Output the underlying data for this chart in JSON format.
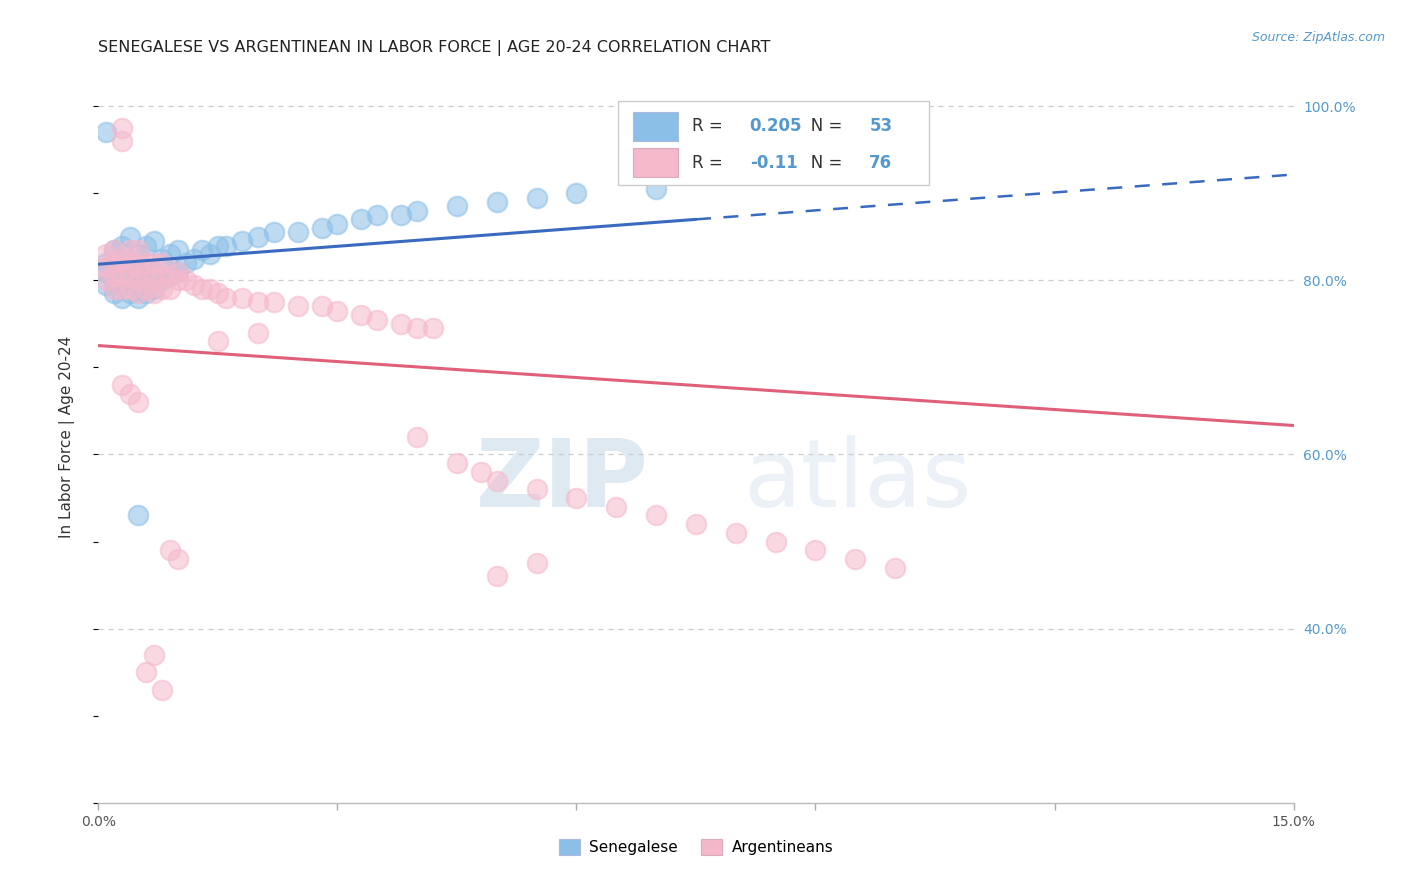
{
  "title": "SENEGALESE VS ARGENTINEAN IN LABOR FORCE | AGE 20-24 CORRELATION CHART",
  "source": "Source: ZipAtlas.com",
  "ylabel": "In Labor Force | Age 20-24",
  "xlim": [
    0.0,
    0.15
  ],
  "ylim": [
    0.2,
    1.04
  ],
  "blue_color": "#8bbfe8",
  "pink_color": "#f5b8cb",
  "blue_line_color": "#3a6abf",
  "pink_line_color": "#e0607a",
  "blue_R": 0.205,
  "blue_N": 53,
  "pink_R": -0.11,
  "pink_N": 76,
  "watermark_zip": "ZIP",
  "watermark_atlas": "atlas",
  "watermark_color": "#c5d8ec",
  "legend_label_blue": "Senegalese",
  "legend_label_pink": "Argentineans",
  "title_fontsize": 11.5,
  "axis_label_fontsize": 11,
  "tick_fontsize": 10,
  "source_fontsize": 9,
  "blue_x": [
    0.001,
    0.001,
    0.001,
    0.001,
    0.002,
    0.002,
    0.002,
    0.002,
    0.003,
    0.003,
    0.003,
    0.004,
    0.004,
    0.004,
    0.004,
    0.005,
    0.005,
    0.005,
    0.005,
    0.006,
    0.006,
    0.006,
    0.007,
    0.007,
    0.007,
    0.008,
    0.008,
    0.009,
    0.009,
    0.01,
    0.01,
    0.011,
    0.012,
    0.013,
    0.014,
    0.015,
    0.016,
    0.018,
    0.02,
    0.022,
    0.025,
    0.028,
    0.03,
    0.033,
    0.035,
    0.038,
    0.04,
    0.045,
    0.05,
    0.055,
    0.06,
    0.07,
    0.005
  ],
  "blue_y": [
    0.795,
    0.81,
    0.82,
    0.97,
    0.785,
    0.8,
    0.82,
    0.835,
    0.78,
    0.8,
    0.84,
    0.785,
    0.8,
    0.82,
    0.85,
    0.78,
    0.795,
    0.81,
    0.83,
    0.785,
    0.81,
    0.84,
    0.79,
    0.81,
    0.845,
    0.8,
    0.825,
    0.805,
    0.83,
    0.81,
    0.835,
    0.82,
    0.825,
    0.835,
    0.83,
    0.84,
    0.84,
    0.845,
    0.85,
    0.855,
    0.855,
    0.86,
    0.865,
    0.87,
    0.875,
    0.875,
    0.88,
    0.885,
    0.89,
    0.895,
    0.9,
    0.905,
    0.53
  ],
  "pink_x": [
    0.001,
    0.001,
    0.001,
    0.002,
    0.002,
    0.002,
    0.002,
    0.003,
    0.003,
    0.003,
    0.003,
    0.003,
    0.004,
    0.004,
    0.004,
    0.004,
    0.005,
    0.005,
    0.005,
    0.005,
    0.006,
    0.006,
    0.006,
    0.007,
    0.007,
    0.007,
    0.008,
    0.008,
    0.008,
    0.009,
    0.009,
    0.01,
    0.01,
    0.011,
    0.012,
    0.013,
    0.014,
    0.015,
    0.016,
    0.018,
    0.02,
    0.022,
    0.025,
    0.028,
    0.03,
    0.033,
    0.035,
    0.038,
    0.04,
    0.042,
    0.045,
    0.048,
    0.05,
    0.055,
    0.06,
    0.065,
    0.07,
    0.075,
    0.08,
    0.085,
    0.09,
    0.095,
    0.1,
    0.003,
    0.004,
    0.005,
    0.006,
    0.007,
    0.008,
    0.009,
    0.01,
    0.015,
    0.02,
    0.04,
    0.05,
    0.055
  ],
  "pink_y": [
    0.8,
    0.815,
    0.83,
    0.79,
    0.805,
    0.82,
    0.835,
    0.96,
    0.975,
    0.79,
    0.805,
    0.825,
    0.79,
    0.805,
    0.82,
    0.835,
    0.785,
    0.8,
    0.815,
    0.835,
    0.79,
    0.805,
    0.82,
    0.785,
    0.8,
    0.82,
    0.79,
    0.805,
    0.82,
    0.79,
    0.805,
    0.8,
    0.81,
    0.8,
    0.795,
    0.79,
    0.79,
    0.785,
    0.78,
    0.78,
    0.775,
    0.775,
    0.77,
    0.77,
    0.765,
    0.76,
    0.755,
    0.75,
    0.745,
    0.745,
    0.59,
    0.58,
    0.57,
    0.56,
    0.55,
    0.54,
    0.53,
    0.52,
    0.51,
    0.5,
    0.49,
    0.48,
    0.47,
    0.68,
    0.67,
    0.66,
    0.35,
    0.37,
    0.33,
    0.49,
    0.48,
    0.73,
    0.74,
    0.62,
    0.46,
    0.475
  ]
}
